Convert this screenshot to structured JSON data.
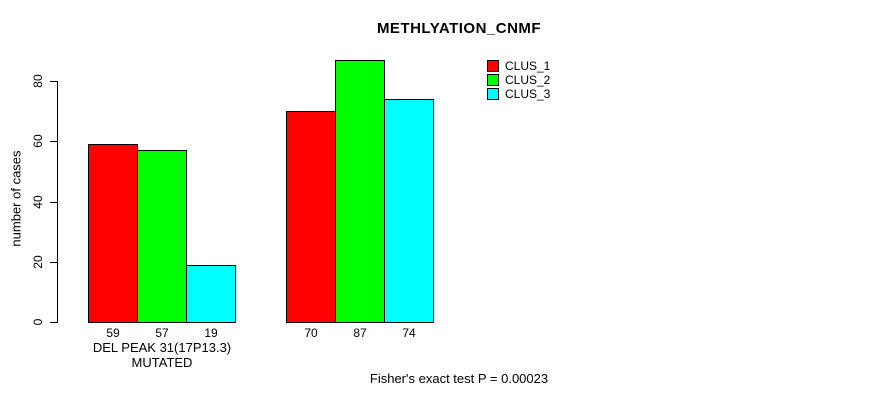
{
  "chart_data": {
    "type": "bar",
    "title": "METHLYATION_CNMF",
    "ylabel": "number of cases",
    "xlabel": "",
    "yticks": [
      0,
      20,
      40,
      60,
      80
    ],
    "ylim": [
      0,
      87
    ],
    "grid": false,
    "legend_position": "top-right-inside",
    "categories": [
      "DEL PEAK 31(17P13.3) MUTATED",
      ""
    ],
    "series": [
      {
        "name": "CLUS_1",
        "color": "#FF0000",
        "values": [
          59,
          70
        ]
      },
      {
        "name": "CLUS_2",
        "color": "#00FF00",
        "values": [
          57,
          87
        ]
      },
      {
        "name": "CLUS_3",
        "color": "#00FFFF",
        "values": [
          19,
          74
        ]
      }
    ],
    "bar_value_labels": [
      [
        59,
        57,
        19
      ],
      [
        70,
        87,
        74
      ]
    ],
    "annotation": "Fisher's exact test P = 0.00023"
  }
}
